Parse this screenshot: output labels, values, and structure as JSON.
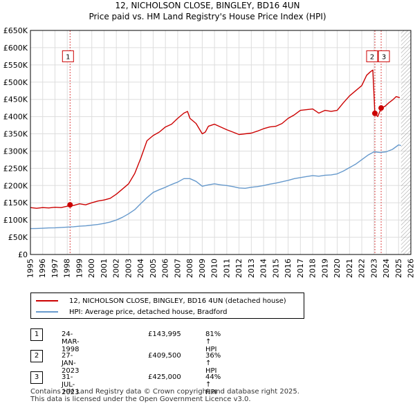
{
  "title_line1": "12, NICHOLSON CLOSE, BINGLEY, BD16 4UN",
  "title_line2": "Price paid vs. HM Land Registry's House Price Index (HPI)",
  "colors": {
    "property": "#cc0000",
    "hpi": "#6699cc",
    "grid": "#dddddd",
    "marker_line": "#dd4444",
    "hatch": "#999999"
  },
  "legend": {
    "property_label": "12, NICHOLSON CLOSE, BINGLEY, BD16 4UN (detached house)",
    "hpi_label": "HPI: Average price, detached house, Bradford"
  },
  "transactions": [
    {
      "num": "1",
      "date": "24-MAR-1998",
      "price": "£143,995",
      "hpi": "81% ↑ HPI"
    },
    {
      "num": "2",
      "date": "27-JAN-2023",
      "price": "£409,500",
      "hpi": "36% ↑ HPI"
    },
    {
      "num": "3",
      "date": "31-JUL-2023",
      "price": "£425,000",
      "hpi": "44% ↑ HPI"
    }
  ],
  "footer_line1": "Contains HM Land Registry data © Crown copyright and database right 2025.",
  "footer_line2": "This data is licensed under the Open Government Licence v3.0.",
  "chart_data": {
    "type": "line",
    "x_type": "year",
    "xlim": [
      1995,
      2026
    ],
    "ylim": [
      0,
      650000
    ],
    "y_ticks": [
      0,
      50000,
      100000,
      150000,
      200000,
      250000,
      300000,
      350000,
      400000,
      450000,
      500000,
      550000,
      600000,
      650000
    ],
    "y_tick_labels": [
      "£0",
      "£50K",
      "£100K",
      "£150K",
      "£200K",
      "£250K",
      "£300K",
      "£350K",
      "£400K",
      "£450K",
      "£500K",
      "£550K",
      "£600K",
      "£650K"
    ],
    "x_ticks": [
      1995,
      1996,
      1997,
      1998,
      1999,
      2000,
      2001,
      2002,
      2003,
      2004,
      2005,
      2006,
      2007,
      2008,
      2009,
      2010,
      2011,
      2012,
      2013,
      2014,
      2015,
      2016,
      2017,
      2018,
      2019,
      2020,
      2021,
      2022,
      2023,
      2024,
      2025,
      2026
    ],
    "x_tick_labels": [
      "1995",
      "1996",
      "1997",
      "1998",
      "1999",
      "2000",
      "2001",
      "2002",
      "2003",
      "2004",
      "2005",
      "2006",
      "2007",
      "2008",
      "2009",
      "2010",
      "2011",
      "2012",
      "2013",
      "2014",
      "2015",
      "2016",
      "2017",
      "2018",
      "2019",
      "2020",
      "2021",
      "2022",
      "2023",
      "2024",
      "2025",
      "2026"
    ],
    "hatch_from": 2025.2,
    "series": [
      {
        "name": "12, NICHOLSON CLOSE, BINGLEY, BD16 4UN (detached house)",
        "x": [
          1995.0,
          1995.5,
          1996.0,
          1996.5,
          1997.0,
          1997.5,
          1998.0,
          1998.23,
          1998.5,
          1999.0,
          1999.5,
          2000.0,
          2000.5,
          2001.0,
          2001.5,
          2002.0,
          2002.5,
          2003.0,
          2003.5,
          2004.0,
          2004.5,
          2005.0,
          2005.5,
          2006.0,
          2006.5,
          2007.0,
          2007.5,
          2007.8,
          2008.0,
          2008.5,
          2009.0,
          2009.25,
          2009.5,
          2010.0,
          2010.5,
          2011.0,
          2011.5,
          2012.0,
          2012.5,
          2013.0,
          2013.5,
          2014.0,
          2014.5,
          2015.0,
          2015.5,
          2016.0,
          2016.5,
          2017.0,
          2017.5,
          2018.0,
          2018.5,
          2019.0,
          2019.5,
          2020.0,
          2020.5,
          2021.0,
          2021.5,
          2022.0,
          2022.4,
          2022.7,
          2022.9,
          2023.07,
          2023.3,
          2023.58,
          2023.9,
          2024.2,
          2024.5,
          2024.8,
          2025.1
        ],
        "y": [
          136000,
          134000,
          136000,
          135000,
          137000,
          136000,
          140000,
          143995,
          142000,
          147000,
          144000,
          150000,
          155000,
          158000,
          163000,
          175000,
          190000,
          205000,
          235000,
          280000,
          330000,
          345000,
          355000,
          370000,
          378000,
          395000,
          410000,
          415000,
          395000,
          380000,
          350000,
          355000,
          372000,
          378000,
          370000,
          362000,
          355000,
          348000,
          350000,
          352000,
          358000,
          365000,
          370000,
          372000,
          380000,
          395000,
          405000,
          418000,
          420000,
          422000,
          410000,
          418000,
          415000,
          418000,
          440000,
          460000,
          475000,
          490000,
          520000,
          530000,
          535000,
          409500,
          400000,
          425000,
          430000,
          440000,
          448000,
          458000,
          455000
        ]
      },
      {
        "name": "HPI: Average price, detached house, Bradford",
        "x": [
          1995.0,
          1995.5,
          1996.0,
          1996.5,
          1997.0,
          1997.5,
          1998.0,
          1998.5,
          1999.0,
          1999.5,
          2000.0,
          2000.5,
          2001.0,
          2001.5,
          2002.0,
          2002.5,
          2003.0,
          2003.5,
          2004.0,
          2004.5,
          2005.0,
          2005.5,
          2006.0,
          2006.5,
          2007.0,
          2007.5,
          2008.0,
          2008.5,
          2009.0,
          2009.5,
          2010.0,
          2010.5,
          2011.0,
          2011.5,
          2012.0,
          2012.5,
          2013.0,
          2013.5,
          2014.0,
          2014.5,
          2015.0,
          2015.5,
          2016.0,
          2016.5,
          2017.0,
          2017.5,
          2018.0,
          2018.5,
          2019.0,
          2019.5,
          2020.0,
          2020.5,
          2021.0,
          2021.5,
          2022.0,
          2022.5,
          2023.0,
          2023.5,
          2024.0,
          2024.5,
          2025.0,
          2025.2
        ],
        "y": [
          75000,
          75500,
          76000,
          77000,
          77500,
          78500,
          79500,
          80500,
          82000,
          83000,
          85000,
          87000,
          90000,
          94000,
          100000,
          108000,
          118000,
          130000,
          148000,
          165000,
          180000,
          188000,
          195000,
          203000,
          210000,
          220000,
          220000,
          212000,
          198000,
          202000,
          205000,
          202000,
          200000,
          197000,
          193000,
          192000,
          195000,
          197000,
          200000,
          204000,
          207000,
          211000,
          215000,
          220000,
          223000,
          226000,
          229000,
          227000,
          230000,
          231000,
          234000,
          242000,
          252000,
          262000,
          275000,
          288000,
          298000,
          296000,
          298000,
          305000,
          318000,
          316000
        ]
      }
    ],
    "markers": [
      {
        "label": "1",
        "x": 1998.23,
        "y": 143995,
        "box_y": 575000
      },
      {
        "label": "2",
        "x": 2023.07,
        "y": 409500,
        "box_y": 575000
      },
      {
        "label": "3",
        "x": 2023.58,
        "y": 425000,
        "box_y": 575000
      }
    ]
  }
}
